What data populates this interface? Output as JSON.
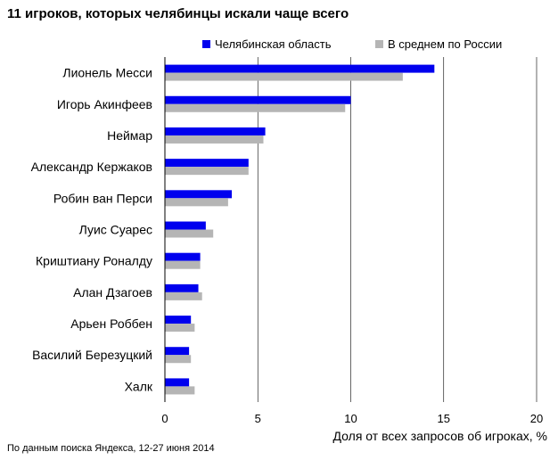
{
  "title": "11 игроков, которых челябинцы  искали чаще всего",
  "source": "По данным  поиска Яндекса,  12-27 июня  2014",
  "colors": {
    "chelyabinsk": "#0000ee",
    "russia": "#b5b5b5",
    "axis": "#000000",
    "grid": "#000000"
  },
  "chart_data": {
    "type": "bar",
    "orientation": "horizontal",
    "categories": [
      "Лионель Месси",
      "Игорь Акинфеев",
      "Неймар",
      "Александр Кержаков",
      "Робин ван Перси",
      "Луис Суарес",
      "Криштиану Роналду",
      "Алан Дзагоев",
      "Арьен Роббен",
      "Василий Березуцкий",
      "Халк"
    ],
    "series": [
      {
        "name": "Челябинская область",
        "values": [
          14.5,
          10.0,
          5.4,
          4.5,
          3.6,
          2.2,
          1.9,
          1.8,
          1.4,
          1.3,
          1.3
        ]
      },
      {
        "name": "В среднем по России",
        "values": [
          12.8,
          9.7,
          5.3,
          4.5,
          3.4,
          2.6,
          1.9,
          2.0,
          1.6,
          1.4,
          1.6
        ]
      }
    ],
    "xlabel": "Доля от всех запросов об игроках, %",
    "xlim": [
      0,
      20
    ],
    "xticks": [
      "0",
      "5",
      "10",
      "15",
      "20"
    ],
    "grid": true,
    "legend": "top-right"
  }
}
